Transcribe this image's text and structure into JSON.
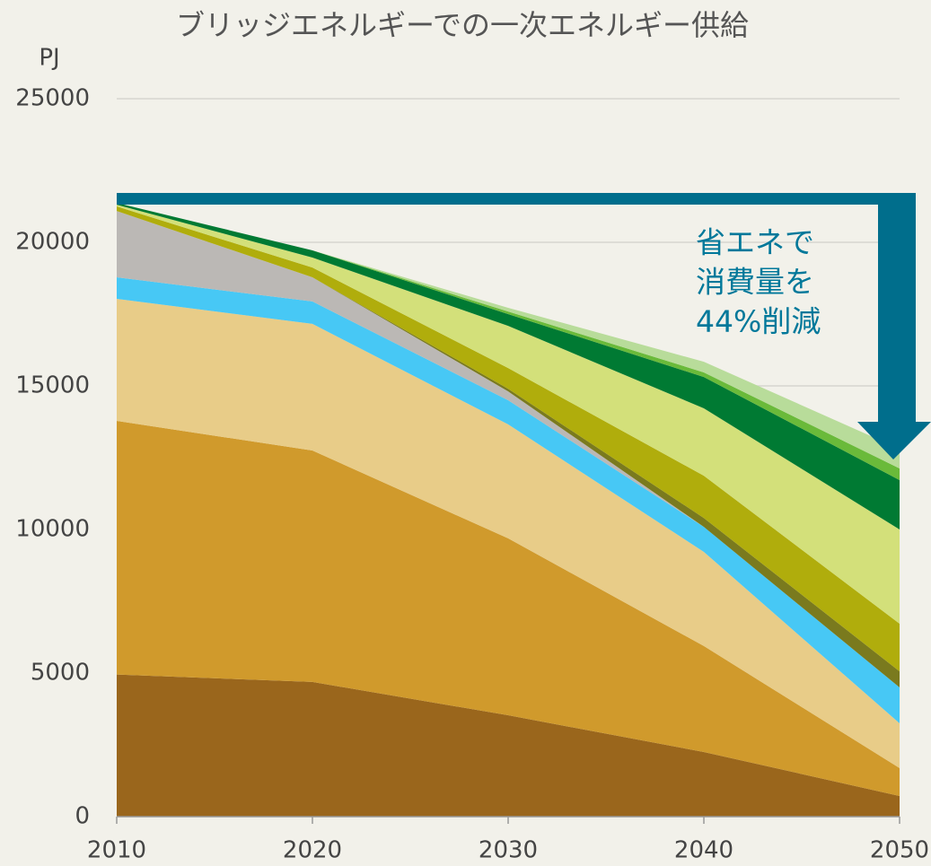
{
  "chart_data": {
    "type": "stacked_area",
    "title": "ブリッジエネルギーでの一次エネルギー供給",
    "y_label": "PJ",
    "annotation": [
      "省エネで",
      "消費量を",
      "44%削減"
    ],
    "x": [
      2010,
      2020,
      2030,
      2040,
      2050
    ],
    "xlim": [
      2010,
      2050
    ],
    "xticks": [
      2010,
      2020,
      2030,
      2040,
      2050
    ],
    "ylim": [
      0,
      25000
    ],
    "yticks": [
      0,
      5000,
      10000,
      15000,
      20000,
      25000
    ],
    "grid": true,
    "series": [
      {
        "color": "#9a661c",
        "values": [
          4950,
          4690,
          3530,
          2250,
          720
        ]
      },
      {
        "color": "#d09a2c",
        "values": [
          8830,
          8060,
          6160,
          3690,
          970
        ]
      },
      {
        "color": "#e8cc88",
        "values": [
          4250,
          4410,
          3970,
          3280,
          1560
        ]
      },
      {
        "color": "#47c8f5",
        "values": [
          750,
          780,
          840,
          870,
          1250
        ]
      },
      {
        "color": "#bbb8b5",
        "values": [
          2310,
          840,
          310,
          0,
          0
        ]
      },
      {
        "color": "#7a7a1e",
        "values": [
          0,
          0,
          90,
          310,
          560
        ]
      },
      {
        "color": "#b0ad0c",
        "values": [
          160,
          340,
          720,
          1470,
          1660
        ]
      },
      {
        "color": "#d3e07a",
        "values": [
          60,
          350,
          1470,
          2350,
          3280
        ]
      },
      {
        "color": "#007a33",
        "values": [
          60,
          250,
          410,
          1090,
          1720
        ]
      },
      {
        "color": "#6aba3a",
        "values": [
          0,
          0,
          90,
          160,
          405
        ]
      },
      {
        "color": "#b8dc9a",
        "values": [
          0,
          0,
          130,
          370,
          685
        ]
      }
    ]
  }
}
